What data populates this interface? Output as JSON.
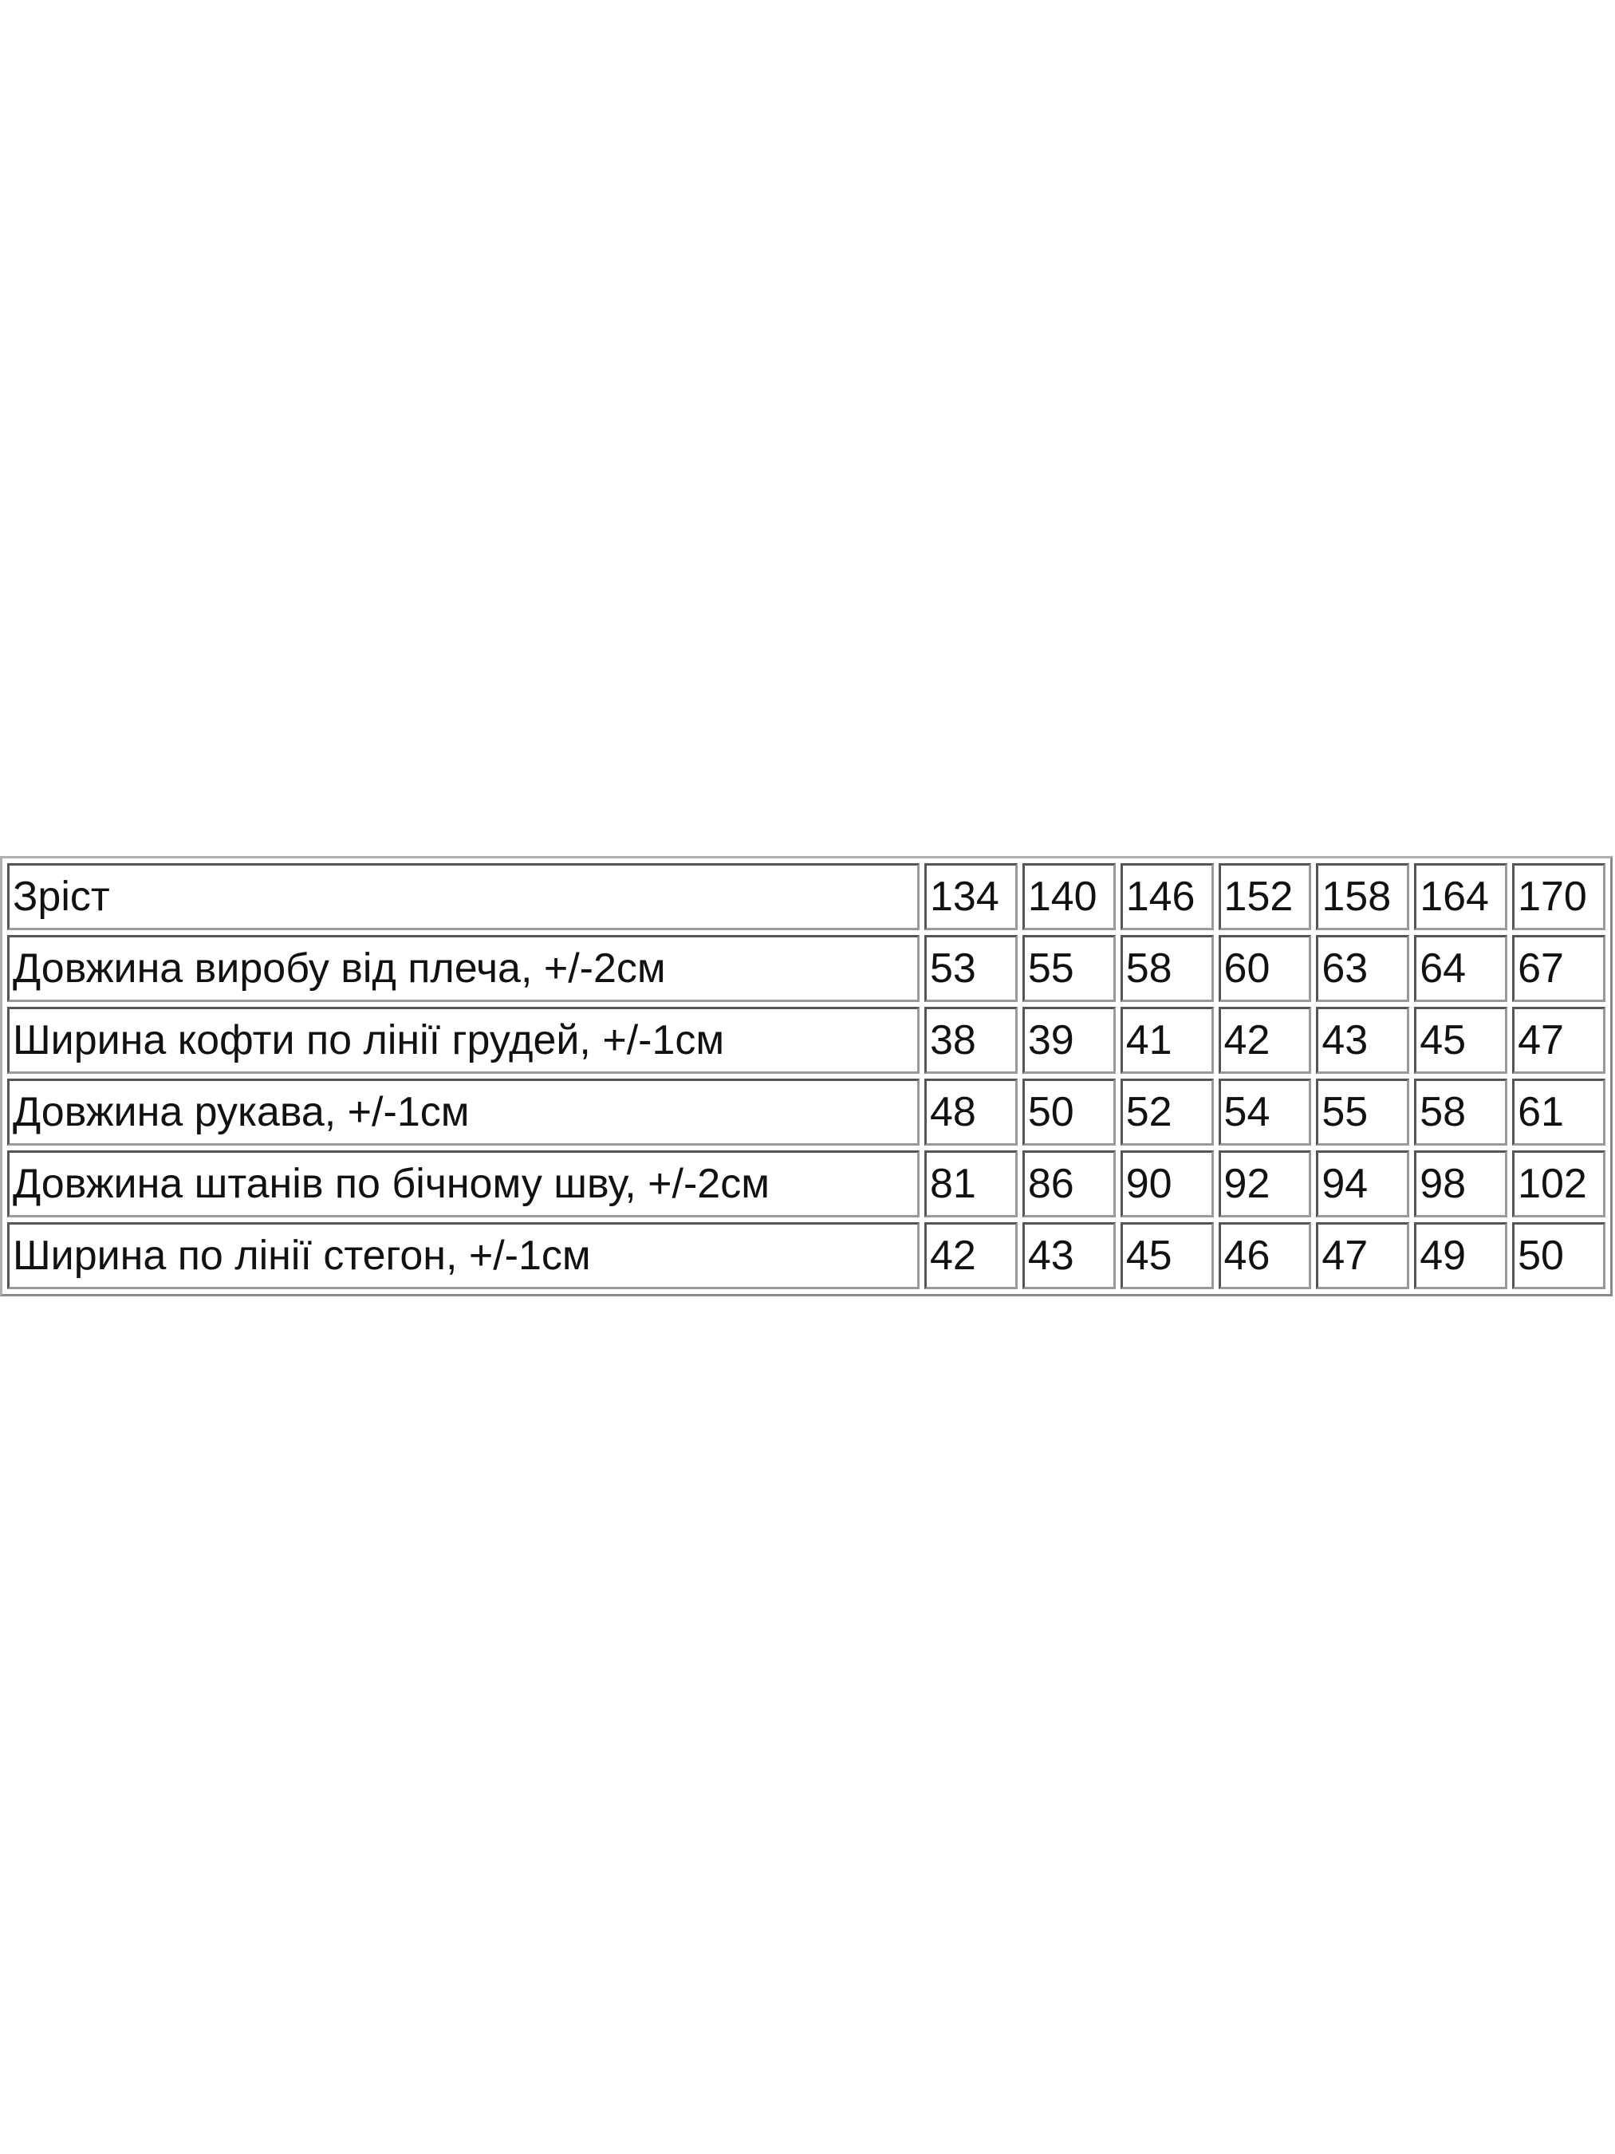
{
  "size_table": {
    "header": {
      "label": "Зріст",
      "sizes": [
        "134",
        "140",
        "146",
        "152",
        "158",
        "164",
        "170"
      ]
    },
    "rows": [
      {
        "label": "Довжина виробу від плеча, +/-2см",
        "values": [
          "53",
          "55",
          "58",
          "60",
          "63",
          "64",
          "67"
        ]
      },
      {
        "label": "Ширина кофти по лінії грудей, +/-1см",
        "values": [
          "38",
          "39",
          "41",
          "42",
          "43",
          "45",
          "47"
        ]
      },
      {
        "label": "Довжина рукава, +/-1см",
        "values": [
          "48",
          "50",
          "52",
          "54",
          "55",
          "58",
          "61"
        ]
      },
      {
        "label": "Довжина штанів по бічному шву, +/-2см",
        "values": [
          "81",
          "86",
          "90",
          "92",
          "94",
          "98",
          "102"
        ]
      },
      {
        "label": "Ширина по лінії стегон, +/-1см",
        "values": [
          "42",
          "43",
          "45",
          "46",
          "47",
          "49",
          "50"
        ]
      }
    ]
  }
}
